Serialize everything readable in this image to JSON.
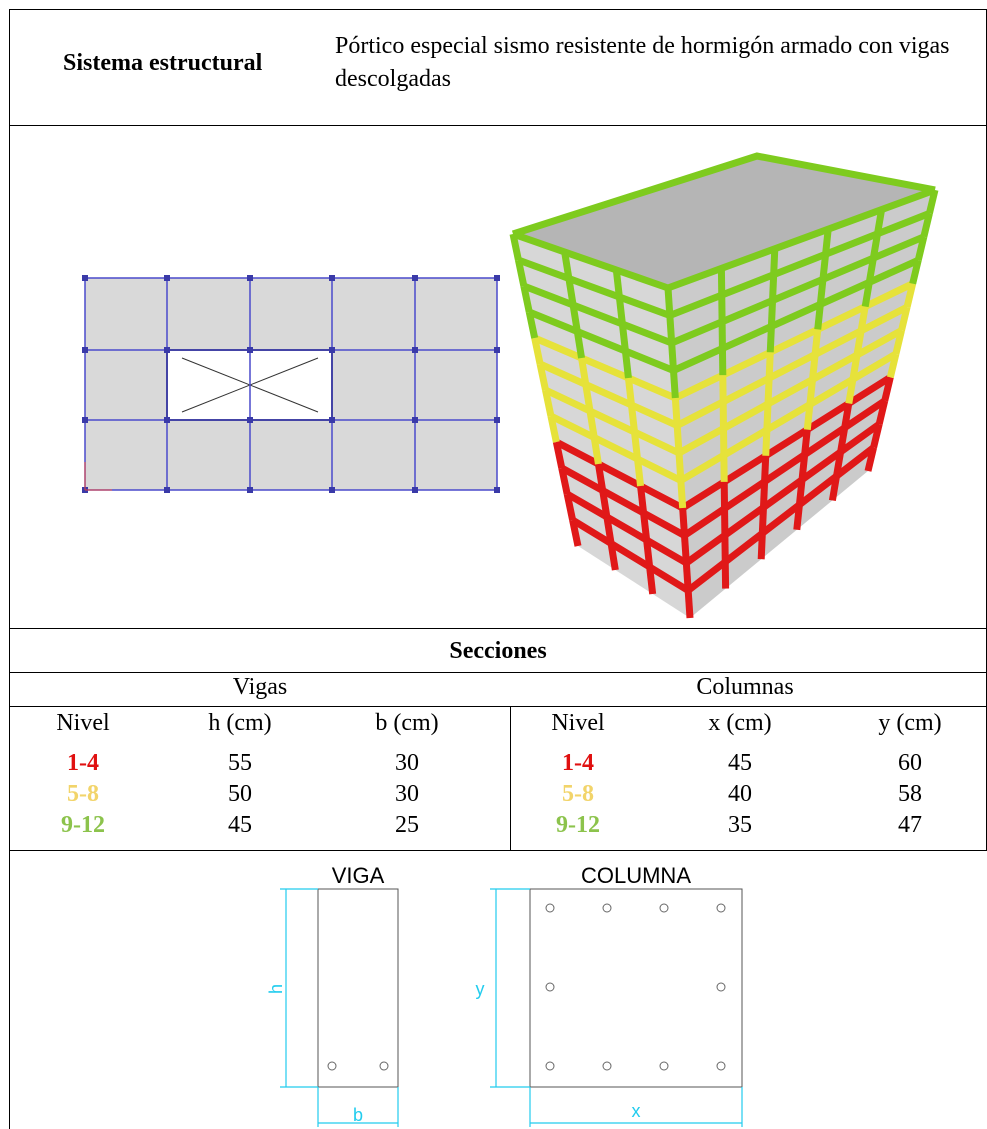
{
  "header": {
    "label": "Sistema estructural",
    "description": "Pórtico especial sismo resistente de hormigón armado con vigas descolgadas"
  },
  "sections": {
    "title": "Secciones",
    "groups": [
      "Vigas",
      "Columnas"
    ],
    "columns": [
      "Nivel",
      "h (cm)",
      "b (cm)",
      "Nivel",
      "x (cm)",
      "y (cm)"
    ],
    "rows": [
      [
        "1-4",
        55,
        30,
        "1-4",
        45,
        60
      ],
      [
        "5-8",
        50,
        30,
        "5-8",
        40,
        58
      ],
      [
        "9-12",
        45,
        25,
        "9-12",
        35,
        47
      ]
    ]
  },
  "diagram": {
    "beam": {
      "title": "VIGA",
      "height_label": "h",
      "width_label": "b"
    },
    "column": {
      "title": "COLUMNA",
      "height_label": "y",
      "width_label": "x"
    }
  }
}
